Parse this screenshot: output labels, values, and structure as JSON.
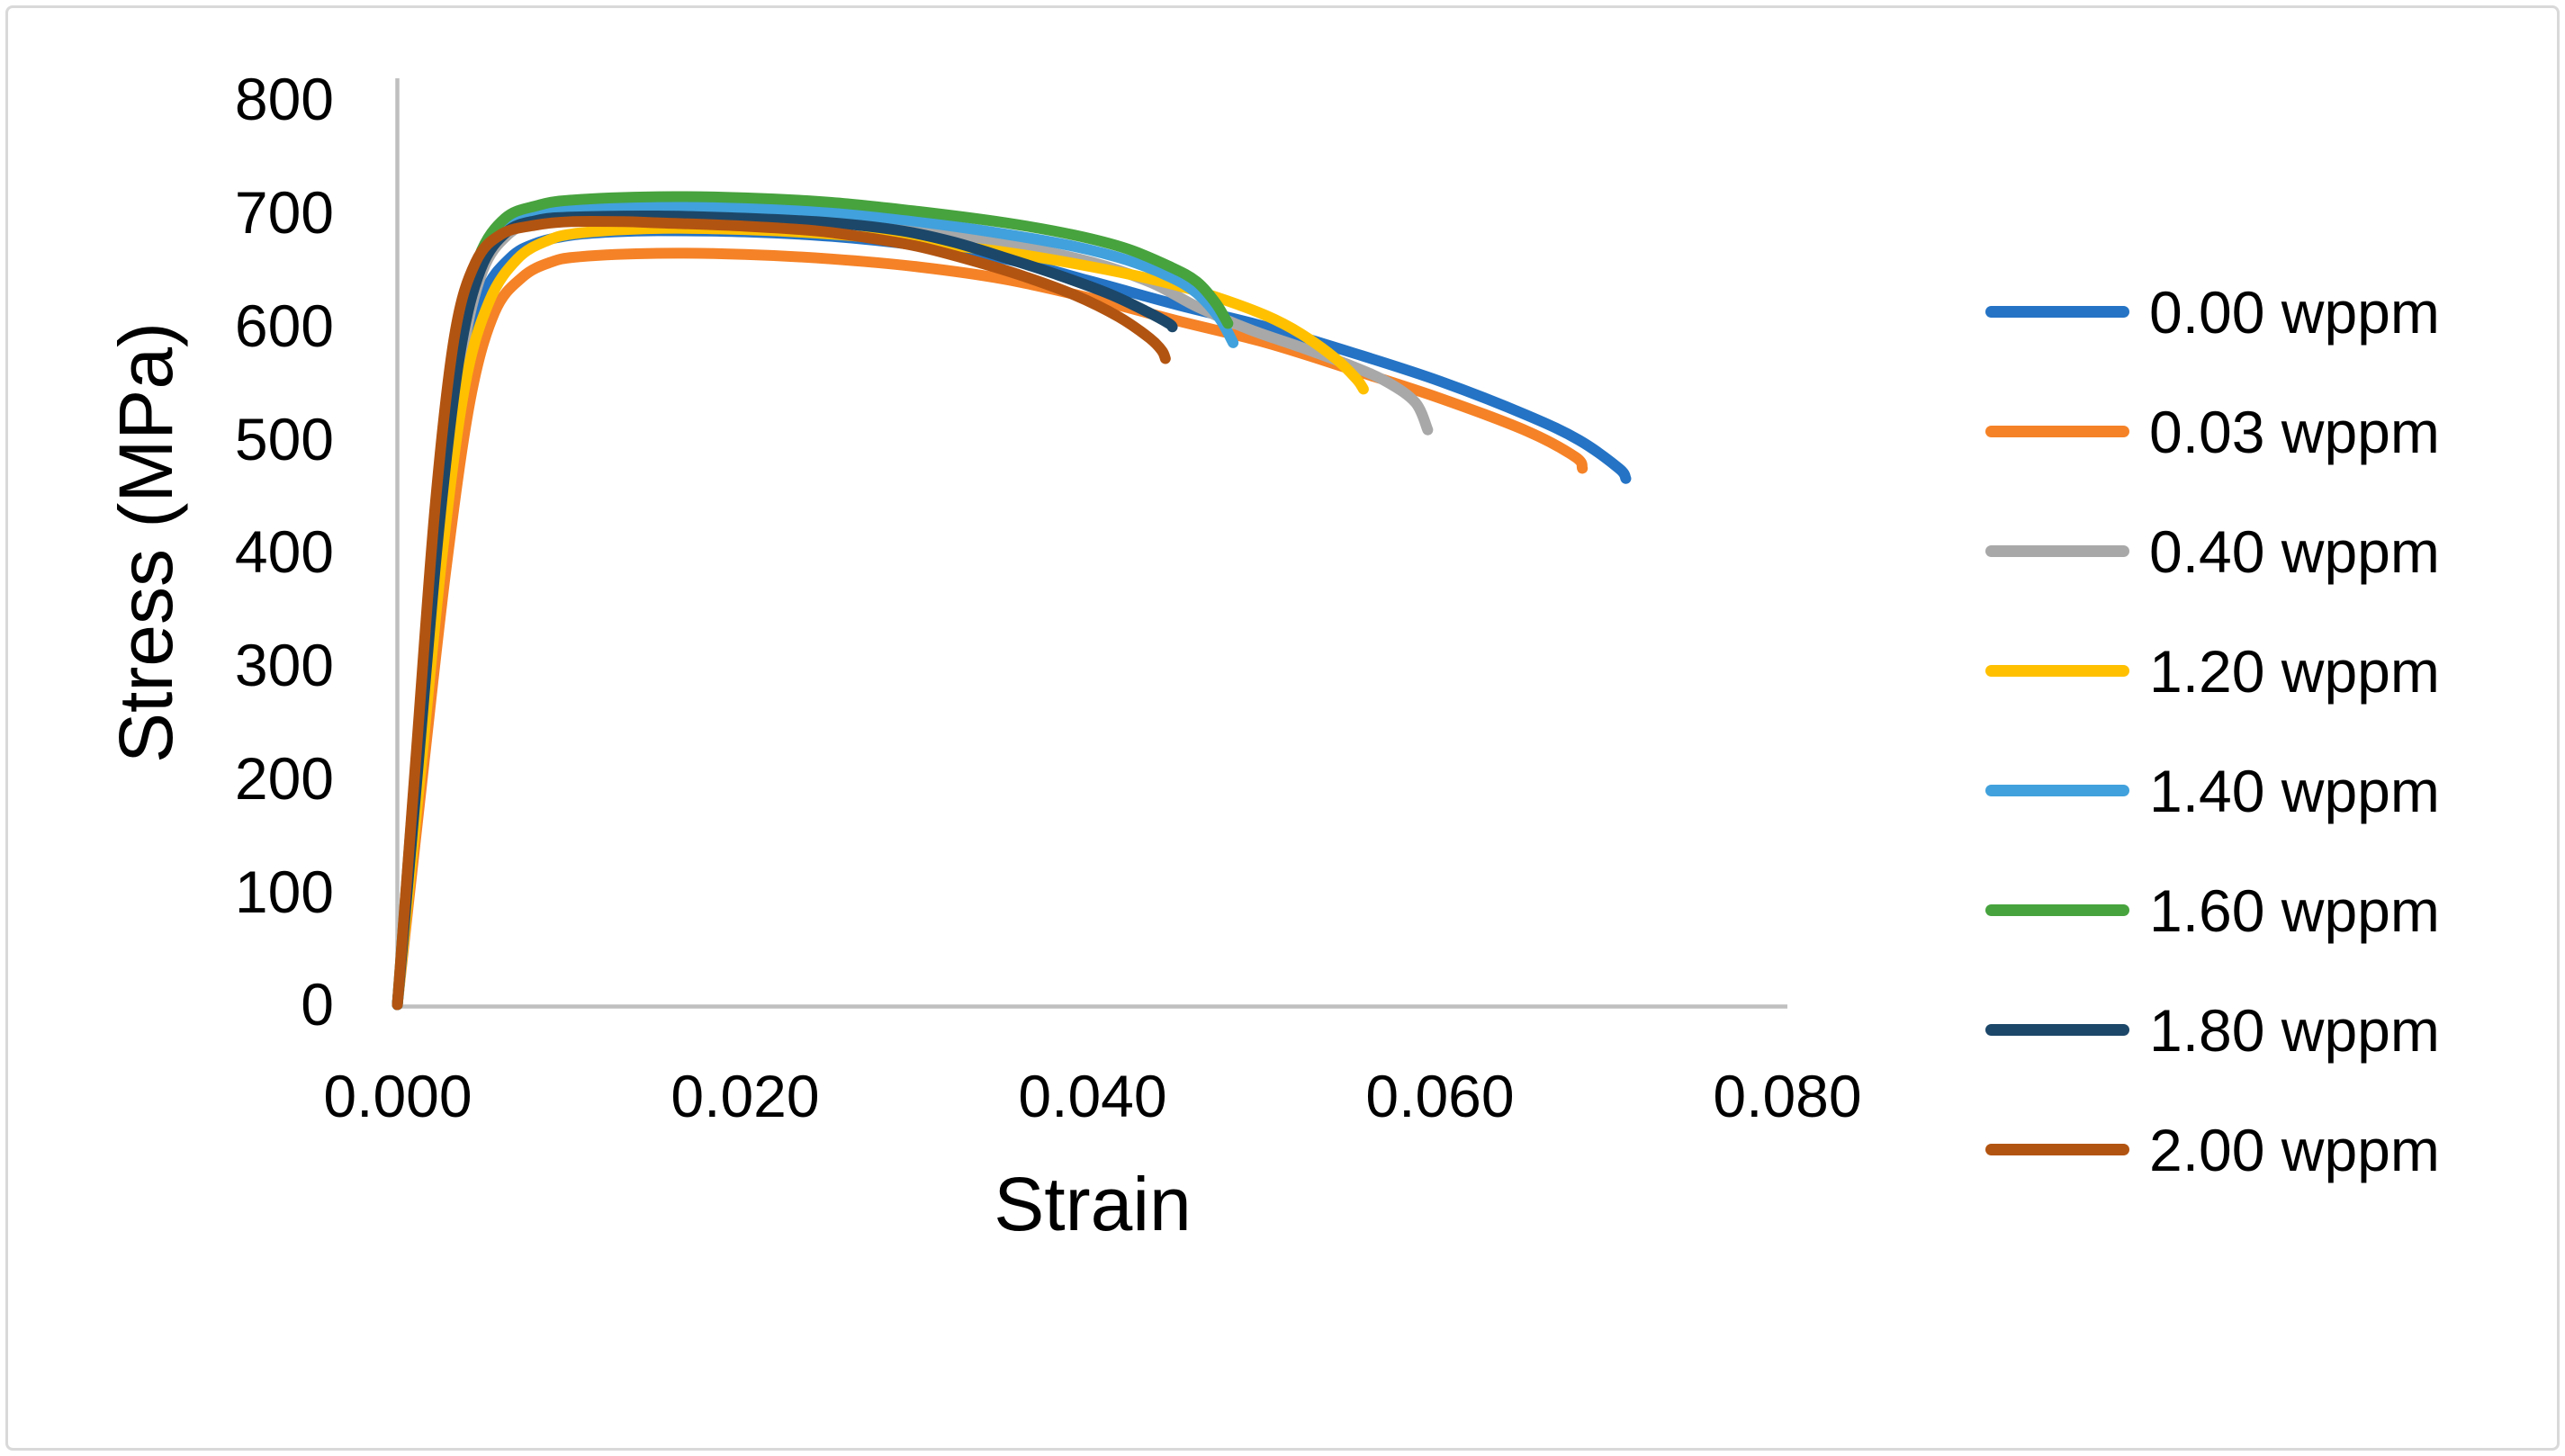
{
  "figure": {
    "background": "#FFFFFF",
    "border_color": "#D9D9D9"
  },
  "chart_data": {
    "type": "line",
    "title": "",
    "xlabel": "Strain",
    "ylabel": "Stress (MPa)",
    "xlim": [
      0,
      0.08
    ],
    "ylim": [
      0,
      800
    ],
    "grid": false,
    "legend_position": "right",
    "axis_color": "#BFBFBF",
    "x_ticks": [
      "0.000",
      "0.020",
      "0.040",
      "0.060",
      "0.080"
    ],
    "x_tick_values": [
      0,
      0.02,
      0.04,
      0.06,
      0.08
    ],
    "y_ticks": [
      "0",
      "100",
      "200",
      "300",
      "400",
      "500",
      "600",
      "700",
      "800"
    ],
    "y_tick_values": [
      0,
      100,
      200,
      300,
      400,
      500,
      600,
      700,
      800
    ],
    "series": [
      {
        "name": "0.00 wppm",
        "color": "#2473C5",
        "points": [
          [
            0,
            0
          ],
          [
            0.0013,
            205
          ],
          [
            0.0026,
            405
          ],
          [
            0.0038,
            555
          ],
          [
            0.005,
            628
          ],
          [
            0.0065,
            660
          ],
          [
            0.008,
            673
          ],
          [
            0.01,
            680
          ],
          [
            0.0125,
            683
          ],
          [
            0.015,
            684
          ],
          [
            0.02,
            683
          ],
          [
            0.025,
            679
          ],
          [
            0.03,
            671
          ],
          [
            0.035,
            659
          ],
          [
            0.04,
            639
          ],
          [
            0.045,
            618
          ],
          [
            0.05,
            599
          ],
          [
            0.055,
            576
          ],
          [
            0.06,
            551
          ],
          [
            0.065,
            521
          ],
          [
            0.068,
            499
          ],
          [
            0.0703,
            474
          ],
          [
            0.0707,
            465
          ]
        ]
      },
      {
        "name": "0.03 wppm",
        "color": "#F58227",
        "points": [
          [
            0,
            0
          ],
          [
            0.0014,
            195
          ],
          [
            0.0028,
            385
          ],
          [
            0.0042,
            535
          ],
          [
            0.0056,
            612
          ],
          [
            0.0072,
            643
          ],
          [
            0.0088,
            656
          ],
          [
            0.0105,
            661
          ],
          [
            0.015,
            664
          ],
          [
            0.02,
            663
          ],
          [
            0.025,
            659
          ],
          [
            0.03,
            652
          ],
          [
            0.035,
            641
          ],
          [
            0.04,
            624
          ],
          [
            0.045,
            604
          ],
          [
            0.05,
            585
          ],
          [
            0.055,
            561
          ],
          [
            0.06,
            536
          ],
          [
            0.065,
            507
          ],
          [
            0.0678,
            484
          ],
          [
            0.0682,
            474
          ]
        ]
      },
      {
        "name": "0.40 wppm",
        "color": "#A8A8A8",
        "points": [
          [
            0,
            0
          ],
          [
            0.0012,
            210
          ],
          [
            0.0025,
            415
          ],
          [
            0.0037,
            570
          ],
          [
            0.0049,
            648
          ],
          [
            0.0064,
            681
          ],
          [
            0.008,
            692
          ],
          [
            0.01,
            697
          ],
          [
            0.015,
            701
          ],
          [
            0.02,
            700
          ],
          [
            0.025,
            696
          ],
          [
            0.03,
            687
          ],
          [
            0.035,
            673
          ],
          [
            0.04,
            656
          ],
          [
            0.0434,
            638
          ],
          [
            0.046,
            617
          ],
          [
            0.049,
            597
          ],
          [
            0.052,
            581
          ],
          [
            0.055,
            564
          ],
          [
            0.057,
            550
          ],
          [
            0.0586,
            532
          ],
          [
            0.0593,
            508
          ]
        ]
      },
      {
        "name": "1.20 wppm",
        "color": "#FFC000",
        "points": [
          [
            0,
            0
          ],
          [
            0.0013,
            200
          ],
          [
            0.0026,
            400
          ],
          [
            0.0039,
            548
          ],
          [
            0.0053,
            622
          ],
          [
            0.0069,
            659
          ],
          [
            0.0086,
            675
          ],
          [
            0.0105,
            682
          ],
          [
            0.015,
            686
          ],
          [
            0.02,
            685
          ],
          [
            0.025,
            681
          ],
          [
            0.03,
            674
          ],
          [
            0.035,
            665
          ],
          [
            0.04,
            652
          ],
          [
            0.044,
            639
          ],
          [
            0.047,
            626
          ],
          [
            0.05,
            609
          ],
          [
            0.052,
            593
          ],
          [
            0.054,
            571
          ],
          [
            0.0552,
            553
          ],
          [
            0.0556,
            544
          ]
        ]
      },
      {
        "name": "1.40 wppm",
        "color": "#41A1DC",
        "points": [
          [
            0,
            0
          ],
          [
            0.0012,
            215
          ],
          [
            0.0024,
            425
          ],
          [
            0.0036,
            578
          ],
          [
            0.0048,
            652
          ],
          [
            0.0063,
            686
          ],
          [
            0.008,
            697
          ],
          [
            0.01,
            702
          ],
          [
            0.015,
            705
          ],
          [
            0.02,
            704
          ],
          [
            0.025,
            700
          ],
          [
            0.03,
            692
          ],
          [
            0.035,
            681
          ],
          [
            0.039,
            670
          ],
          [
            0.042,
            658
          ],
          [
            0.0445,
            643
          ],
          [
            0.046,
            629
          ],
          [
            0.0473,
            607
          ],
          [
            0.0481,
            585
          ]
        ]
      },
      {
        "name": "1.60 wppm",
        "color": "#47A33E",
        "points": [
          [
            0,
            0
          ],
          [
            0.0011,
            220
          ],
          [
            0.0023,
            435
          ],
          [
            0.0035,
            588
          ],
          [
            0.0047,
            661
          ],
          [
            0.0062,
            695
          ],
          [
            0.008,
            706
          ],
          [
            0.01,
            711
          ],
          [
            0.015,
            714
          ],
          [
            0.02,
            713
          ],
          [
            0.025,
            709
          ],
          [
            0.03,
            701
          ],
          [
            0.035,
            691
          ],
          [
            0.039,
            680
          ],
          [
            0.042,
            668
          ],
          [
            0.0445,
            652
          ],
          [
            0.046,
            639
          ],
          [
            0.0471,
            620
          ],
          [
            0.0478,
            602
          ]
        ]
      },
      {
        "name": "1.80 wppm",
        "color": "#1C4769",
        "points": [
          [
            0,
            0
          ],
          [
            0.0012,
            212
          ],
          [
            0.0024,
            422
          ],
          [
            0.0036,
            575
          ],
          [
            0.0048,
            650
          ],
          [
            0.0063,
            683
          ],
          [
            0.008,
            693
          ],
          [
            0.01,
            696
          ],
          [
            0.015,
            697
          ],
          [
            0.02,
            695
          ],
          [
            0.025,
            691
          ],
          [
            0.029,
            684
          ],
          [
            0.032,
            674
          ],
          [
            0.035,
            660
          ],
          [
            0.038,
            645
          ],
          [
            0.041,
            628
          ],
          [
            0.0432,
            612
          ],
          [
            0.0444,
            602
          ],
          [
            0.0446,
            599
          ]
        ]
      },
      {
        "name": "2.00 wppm",
        "color": "#B25411",
        "points": [
          [
            0,
            0
          ],
          [
            0.0011,
            225
          ],
          [
            0.0022,
            445
          ],
          [
            0.0033,
            592
          ],
          [
            0.0045,
            656
          ],
          [
            0.006,
            681
          ],
          [
            0.008,
            689
          ],
          [
            0.01,
            692
          ],
          [
            0.013,
            692
          ],
          [
            0.015,
            691
          ],
          [
            0.02,
            688
          ],
          [
            0.024,
            684
          ],
          [
            0.027,
            678
          ],
          [
            0.03,
            670
          ],
          [
            0.033,
            658
          ],
          [
            0.036,
            644
          ],
          [
            0.039,
            627
          ],
          [
            0.0415,
            608
          ],
          [
            0.0433,
            589
          ],
          [
            0.044,
            578
          ],
          [
            0.0442,
            571
          ]
        ]
      }
    ]
  },
  "legend": {
    "items": [
      {
        "label": "0.00 wppm",
        "color": "#2473C5"
      },
      {
        "label": "0.03 wppm",
        "color": "#F58227"
      },
      {
        "label": "0.40 wppm",
        "color": "#A8A8A8"
      },
      {
        "label": "1.20 wppm",
        "color": "#FFC000"
      },
      {
        "label": "1.40 wppm",
        "color": "#41A1DC"
      },
      {
        "label": "1.60 wppm",
        "color": "#47A33E"
      },
      {
        "label": "1.80 wppm",
        "color": "#1C4769"
      },
      {
        "label": "2.00 wppm",
        "color": "#B25411"
      }
    ]
  }
}
